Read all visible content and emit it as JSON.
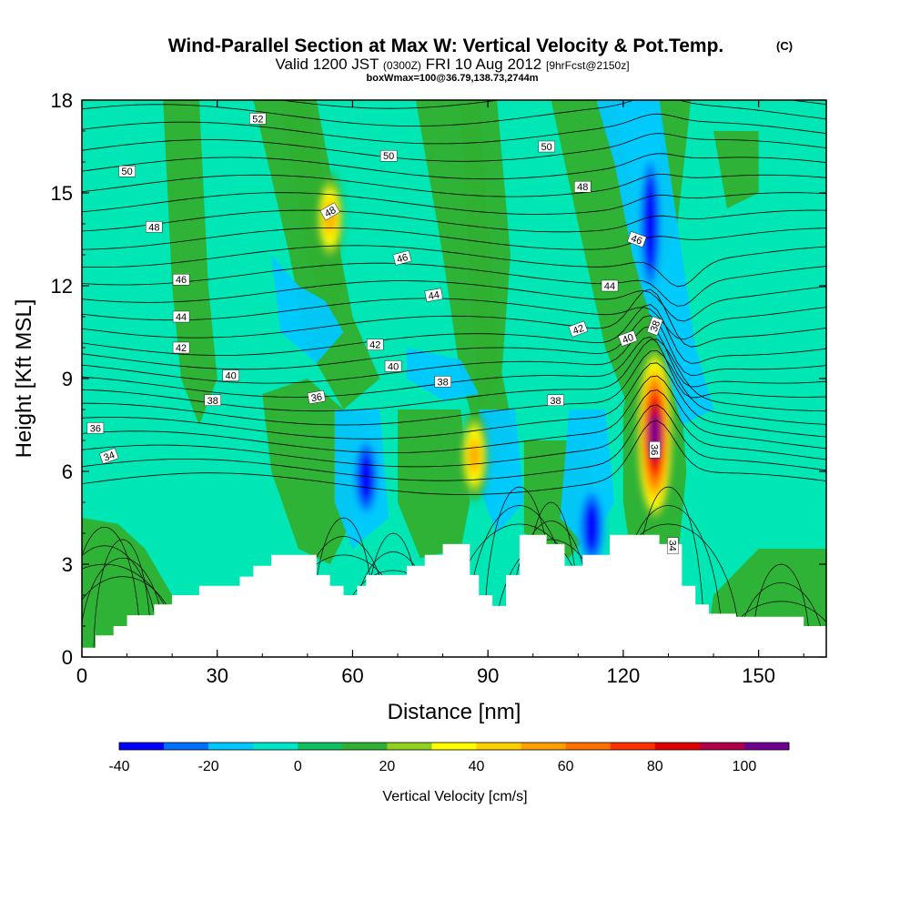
{
  "title": {
    "main": "Wind-Parallel Section at Max W: Vertical Velocity & Pot.Temp.",
    "copyright": "(C)",
    "valid_prefix": "Valid 1200 JST",
    "valid_utc": "(0300Z)",
    "valid_date": "FRI 10 Aug 2012",
    "forecast": "[9hrFcst@2150z]",
    "box_info": "boxWmax=100@36.79,138.73,2744m"
  },
  "chart_data": {
    "type": "heatmap",
    "xlabel": "Distance [nm]",
    "ylabel": "Height [Kft MSL]",
    "xlim": [
      0,
      165
    ],
    "ylim": [
      0,
      18
    ],
    "xticks": [
      0,
      30,
      60,
      90,
      120,
      150
    ],
    "yticks": [
      0,
      3,
      6,
      9,
      12,
      15,
      18
    ],
    "colorbar": {
      "label": "Vertical Velocity [cm/s]",
      "levels": [
        -40,
        -30,
        -20,
        -10,
        0,
        10,
        20,
        30,
        40,
        50,
        60,
        70,
        80,
        90,
        100,
        110
      ],
      "colors": [
        "#0000ff",
        "#0070ff",
        "#00c8ff",
        "#00e6c8",
        "#10c060",
        "#30b030",
        "#90d020",
        "#ffff00",
        "#ffd000",
        "#ffa000",
        "#ff7000",
        "#ff3000",
        "#e00000",
        "#b0004a",
        "#700090"
      ],
      "tick_labels": [
        -40,
        -20,
        0,
        20,
        40,
        60,
        80,
        100
      ]
    },
    "terrain": [
      [
        0,
        0.3
      ],
      [
        3,
        0.7
      ],
      [
        7,
        1.0
      ],
      [
        10,
        1.35
      ],
      [
        16,
        1.7
      ],
      [
        20,
        2.0
      ],
      [
        26,
        2.3
      ],
      [
        35,
        2.6
      ],
      [
        38,
        2.95
      ],
      [
        42,
        3.3
      ],
      [
        52,
        2.65
      ],
      [
        55,
        2.3
      ],
      [
        58,
        2.0
      ],
      [
        61,
        2.3
      ],
      [
        63,
        2.65
      ],
      [
        72,
        2.95
      ],
      [
        76,
        3.3
      ],
      [
        80,
        3.65
      ],
      [
        86,
        2.65
      ],
      [
        88,
        2.0
      ],
      [
        91,
        1.65
      ],
      [
        94,
        2.65
      ],
      [
        97,
        3.95
      ],
      [
        103,
        3.65
      ],
      [
        107,
        2.95
      ],
      [
        111,
        3.3
      ],
      [
        117,
        3.95
      ],
      [
        128,
        3.65
      ],
      [
        133,
        2.3
      ],
      [
        136,
        1.7
      ],
      [
        139,
        1.4
      ],
      [
        145,
        1.3
      ],
      [
        155,
        1.3
      ],
      [
        160,
        1.0
      ],
      [
        165,
        1.0
      ]
    ],
    "features": [
      {
        "name": "updraft-core",
        "x": 127,
        "y": 7.2,
        "max": 100
      },
      {
        "name": "updraft-secondary",
        "x": 87,
        "y": 6.5,
        "max": 40
      },
      {
        "name": "upper-updraft",
        "x": 55,
        "y": 14.2,
        "max": 35
      },
      {
        "name": "downdraft-upper",
        "x": 126,
        "y": 14.0,
        "min": -40
      },
      {
        "name": "downdraft-mid",
        "x": 63,
        "y": 5.8,
        "min": -30
      },
      {
        "name": "downdraft-low",
        "x": 113,
        "y": 4.2,
        "min": -30
      }
    ],
    "contour_labels": [
      {
        "text": "52",
        "x": 39,
        "y": 17.4,
        "rot": 0
      },
      {
        "text": "50",
        "x": 10,
        "y": 15.7,
        "rot": 0
      },
      {
        "text": "50",
        "x": 68,
        "y": 16.2,
        "rot": 0
      },
      {
        "text": "50",
        "x": 103,
        "y": 16.5,
        "rot": 0
      },
      {
        "text": "48",
        "x": 16,
        "y": 13.9,
        "rot": 0
      },
      {
        "text": "48",
        "x": 55,
        "y": 14.4,
        "rot": -30
      },
      {
        "text": "48",
        "x": 111,
        "y": 15.2,
        "rot": 0
      },
      {
        "text": "46",
        "x": 22,
        "y": 12.2,
        "rot": 0
      },
      {
        "text": "46",
        "x": 71,
        "y": 12.9,
        "rot": -15
      },
      {
        "text": "46",
        "x": 123,
        "y": 13.5,
        "rot": 20
      },
      {
        "text": "44",
        "x": 22,
        "y": 11.0,
        "rot": 0
      },
      {
        "text": "44",
        "x": 78,
        "y": 11.7,
        "rot": -10
      },
      {
        "text": "44",
        "x": 117,
        "y": 12.0,
        "rot": 0
      },
      {
        "text": "42",
        "x": 22,
        "y": 10.0,
        "rot": 0
      },
      {
        "text": "42",
        "x": 65,
        "y": 10.1,
        "rot": 0
      },
      {
        "text": "42",
        "x": 110,
        "y": 10.6,
        "rot": -20
      },
      {
        "text": "40",
        "x": 33,
        "y": 9.1,
        "rot": 0
      },
      {
        "text": "40",
        "x": 69,
        "y": 9.4,
        "rot": 0
      },
      {
        "text": "40",
        "x": 121,
        "y": 10.3,
        "rot": -20
      },
      {
        "text": "38",
        "x": 29,
        "y": 8.3,
        "rot": 0
      },
      {
        "text": "38",
        "x": 80,
        "y": 8.9,
        "rot": 0
      },
      {
        "text": "38",
        "x": 105,
        "y": 8.3,
        "rot": 0
      },
      {
        "text": "38",
        "x": 127,
        "y": 10.7,
        "rot": -70
      },
      {
        "text": "36",
        "x": 3,
        "y": 7.4,
        "rot": 0
      },
      {
        "text": "36",
        "x": 52,
        "y": 8.4,
        "rot": -10
      },
      {
        "text": "36",
        "x": 127,
        "y": 6.7,
        "rot": 90
      },
      {
        "text": "34",
        "x": 6,
        "y": 6.5,
        "rot": -20
      },
      {
        "text": "34",
        "x": 131,
        "y": 3.6,
        "rot": 90
      }
    ]
  }
}
